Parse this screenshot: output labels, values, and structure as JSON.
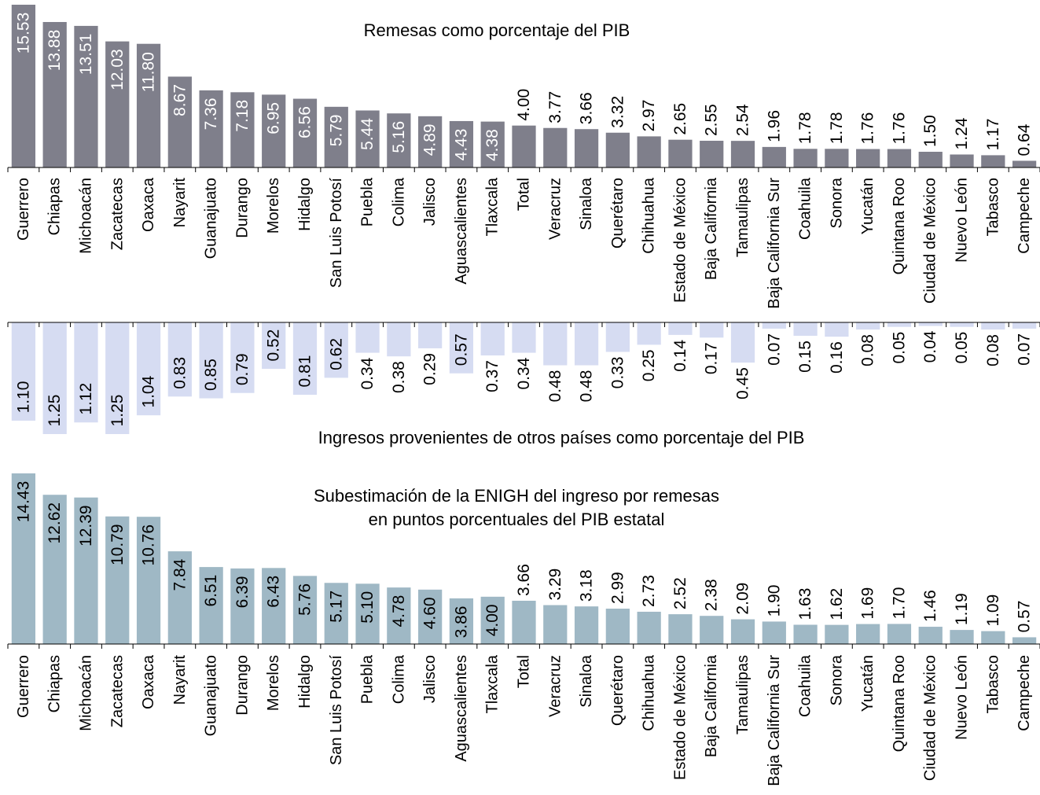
{
  "chart_data": [
    {
      "type": "bar",
      "title": "Remesas como porcentaje del PIB",
      "color": "#7f7f8b",
      "categories": [
        "Guerrero",
        "Chiapas",
        "Michoacán",
        "Zacatecas",
        "Oaxaca",
        "Nayarit",
        "Guanajuato",
        "Durango",
        "Morelos",
        "Hidalgo",
        "San Luis Potosí",
        "Puebla",
        "Colima",
        "Jalisco",
        "Aguascalientes",
        "Tlaxcala",
        "Total",
        "Veracruz",
        "Sinaloa",
        "Querétaro",
        "Chihuahua",
        "Estado de México",
        "Baja California",
        "Tamaulipas",
        "Baja California Sur",
        "Coahuila",
        "Sonora",
        "Yucatán",
        "Quintana Roo",
        "Ciudad de México",
        "Nuevo León",
        "Tabasco",
        "Campeche"
      ],
      "values": [
        15.53,
        13.88,
        13.51,
        12.03,
        11.8,
        8.67,
        7.36,
        7.18,
        6.95,
        6.56,
        5.79,
        5.44,
        5.16,
        4.89,
        4.43,
        4.38,
        4.0,
        3.77,
        3.66,
        3.32,
        2.97,
        2.65,
        2.55,
        2.54,
        1.96,
        1.78,
        1.78,
        1.76,
        1.76,
        1.5,
        1.24,
        1.17,
        0.64
      ],
      "value_labels": [
        "15.53",
        "13.88",
        "13.51",
        "12.03",
        "11.80",
        "8.67",
        "7.36",
        "7.18",
        "6.95",
        "6.56",
        "5.79",
        "5.44",
        "5.16",
        "4.89",
        "4.43",
        "4.38",
        "4.00",
        "3.77",
        "3.66",
        "3.32",
        "2.97",
        "2.65",
        "2.55",
        "2.54",
        "1.96",
        "1.78",
        "1.78",
        "1.76",
        "1.76",
        "1.50",
        "1.24",
        "1.17",
        "0.64"
      ]
    },
    {
      "type": "bar",
      "title": "Ingresos provenientes de otros países como porcentaje del PIB",
      "orientation": "downward",
      "color": "#d6dcf2",
      "categories": [
        "Guerrero",
        "Chiapas",
        "Michoacán",
        "Zacatecas",
        "Oaxaca",
        "Nayarit",
        "Guanajuato",
        "Durango",
        "Morelos",
        "Hidalgo",
        "San Luis Potosí",
        "Puebla",
        "Colima",
        "Jalisco",
        "Aguascalientes",
        "Tlaxcala",
        "Total",
        "Veracruz",
        "Sinaloa",
        "Querétaro",
        "Chihuahua",
        "Estado de México",
        "Baja California",
        "Tamaulipas",
        "Baja California Sur",
        "Coahuila",
        "Sonora",
        "Yucatán",
        "Quintana Roo",
        "Ciudad de México",
        "Nuevo León",
        "Tabasco",
        "Campeche"
      ],
      "values": [
        1.1,
        1.25,
        1.12,
        1.25,
        1.04,
        0.83,
        0.85,
        0.79,
        0.52,
        0.81,
        0.62,
        0.34,
        0.38,
        0.29,
        0.57,
        0.37,
        0.34,
        0.48,
        0.48,
        0.33,
        0.25,
        0.14,
        0.17,
        0.45,
        0.07,
        0.15,
        0.16,
        0.08,
        0.05,
        0.04,
        0.05,
        0.08,
        0.07
      ],
      "value_labels": [
        "1.10",
        "1.25",
        "1.12",
        "1.25",
        "1.04",
        "0.83",
        "0.85",
        "0.79",
        "0.52",
        "0.81",
        "0.62",
        "0.34",
        "0.38",
        "0.29",
        "0.57",
        "0.37",
        "0.34",
        "0.48",
        "0.48",
        "0.33",
        "0.25",
        "0.14",
        "0.17",
        "0.45",
        "0.07",
        "0.15",
        "0.16",
        "0.08",
        "0.05",
        "0.04",
        "0.05",
        "0.08",
        "0.07"
      ]
    },
    {
      "type": "bar",
      "title_lines": [
        "Subestimación de la ENIGH del ingreso por remesas",
        "en puntos porcentuales del PIB estatal"
      ],
      "color": "#9fb8c5",
      "categories": [
        "Guerrero",
        "Chiapas",
        "Michoacán",
        "Zacatecas",
        "Oaxaca",
        "Nayarit",
        "Guanajuato",
        "Durango",
        "Morelos",
        "Hidalgo",
        "San Luis Potosí",
        "Puebla",
        "Colima",
        "Jalisco",
        "Aguascalientes",
        "Tlaxcala",
        "Total",
        "Veracruz",
        "Sinaloa",
        "Querétaro",
        "Chihuahua",
        "Estado de México",
        "Baja California",
        "Tamaulipas",
        "Baja California Sur",
        "Coahuila",
        "Sonora",
        "Yucatán",
        "Quintana Roo",
        "Ciudad de México",
        "Nuevo León",
        "Tabasco",
        "Campeche"
      ],
      "values": [
        14.43,
        12.62,
        12.39,
        10.79,
        10.76,
        7.84,
        6.51,
        6.39,
        6.43,
        5.76,
        5.17,
        5.1,
        4.78,
        4.6,
        3.86,
        4.0,
        3.66,
        3.29,
        3.18,
        2.99,
        2.73,
        2.52,
        2.38,
        2.09,
        1.9,
        1.63,
        1.62,
        1.69,
        1.7,
        1.46,
        1.19,
        1.09,
        0.57
      ],
      "value_labels": [
        "14.43",
        "12.62",
        "12.39",
        "10.79",
        "10.76",
        "7.84",
        "6.51",
        "6.39",
        "6.43",
        "5.76",
        "5.17",
        "5.10",
        "4.78",
        "4.60",
        "3.86",
        "4.00",
        "3.66",
        "3.29",
        "3.18",
        "2.99",
        "2.73",
        "2.52",
        "2.38",
        "2.09",
        "1.90",
        "1.63",
        "1.62",
        "1.69",
        "1.70",
        "1.46",
        "1.19",
        "1.09",
        "0.57"
      ]
    }
  ]
}
